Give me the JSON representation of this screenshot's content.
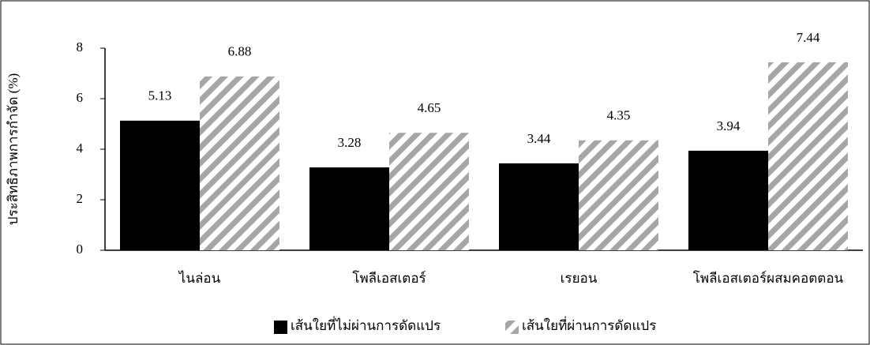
{
  "chart_data": {
    "type": "bar",
    "y_label": "ประสิทธิภาพการกำจัด   (%)",
    "categories": [
      "ไนล่อน",
      "โพลีเอสเตอร์",
      "เรยอน",
      "โพลีเอสเตอร์ผสมคอตตอน"
    ],
    "series": [
      {
        "name": "เส้นใยที่ไม่ผ่านการดัดแปร",
        "color": "#000000",
        "pattern": "solid",
        "values": [
          5.13,
          3.28,
          3.44,
          3.94
        ]
      },
      {
        "name": "เส้นใยที่ผ่านการดัดแปร",
        "color": "#a6a6a6",
        "pattern": "diagonal",
        "values": [
          6.88,
          4.65,
          4.35,
          7.44
        ]
      }
    ],
    "ylim": [
      0,
      8
    ],
    "yticks": [
      0,
      2,
      4,
      6,
      8
    ],
    "grid": false,
    "legend": "bottom"
  }
}
